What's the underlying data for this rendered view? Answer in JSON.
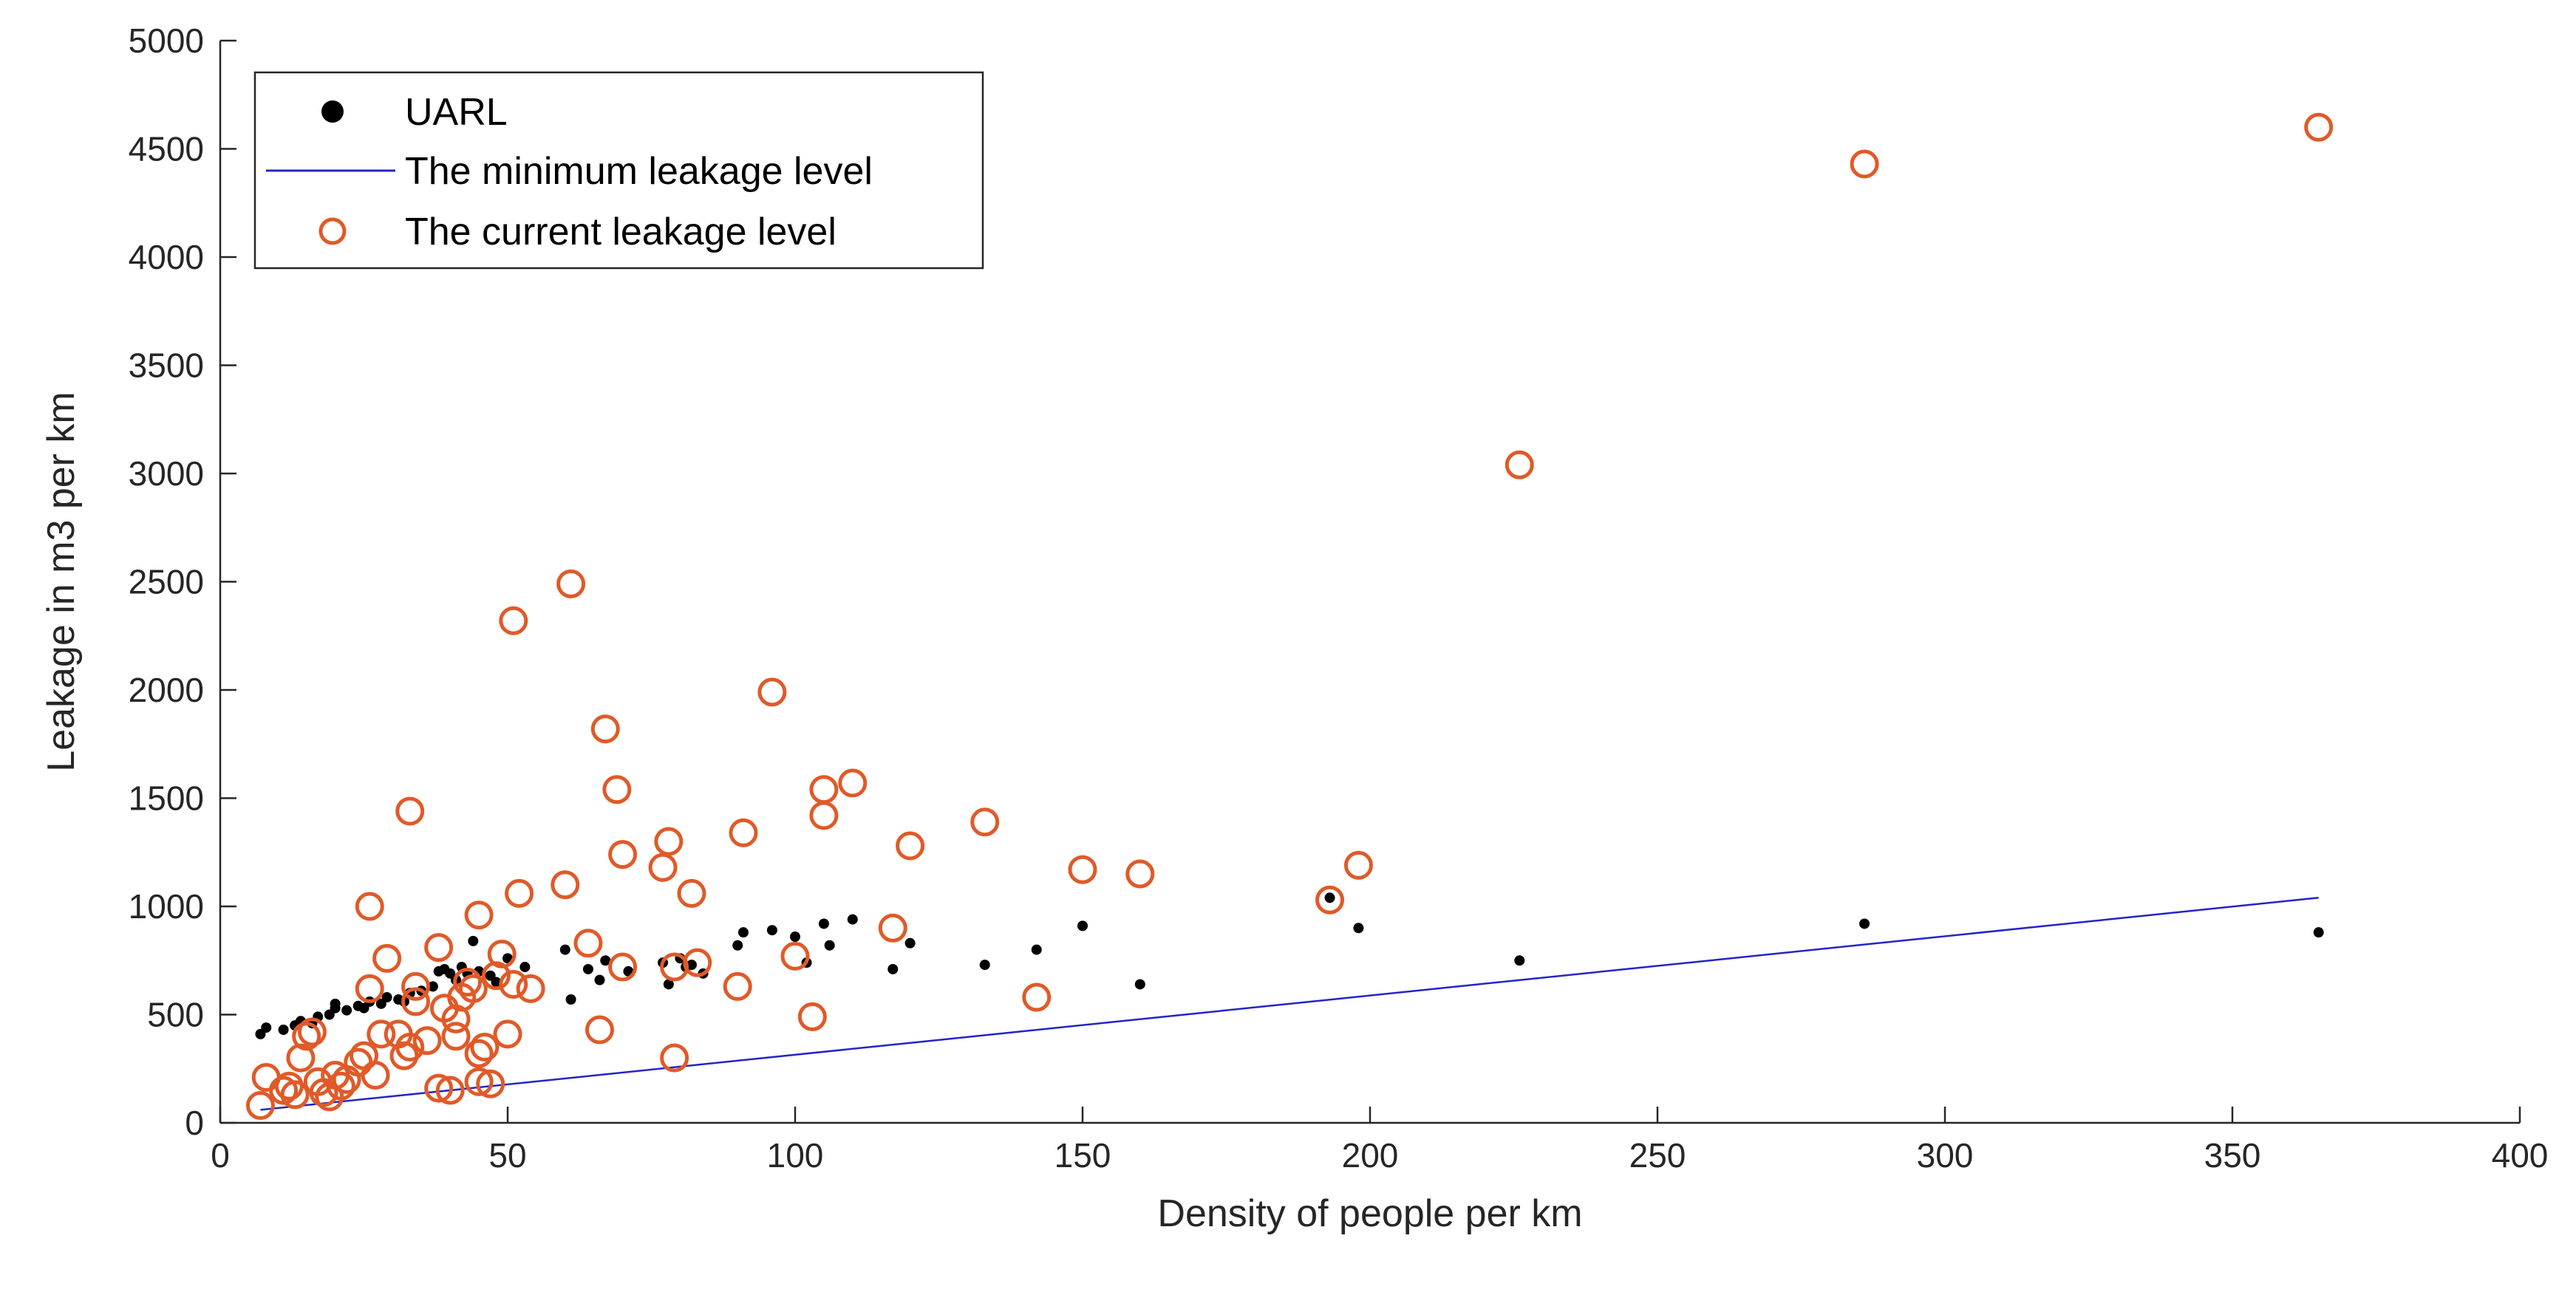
{
  "chart_data": {
    "type": "scatter",
    "xlabel": "Density of people per km",
    "ylabel": "Leakage in m3 per km",
    "xlim": [
      0,
      400
    ],
    "ylim": [
      0,
      5000
    ],
    "xticks": [
      0,
      50,
      100,
      150,
      200,
      250,
      300,
      350,
      400
    ],
    "yticks": [
      0,
      500,
      1000,
      1500,
      2000,
      2500,
      3000,
      3500,
      4000,
      4500,
      5000
    ],
    "xtick_labels": [
      "0",
      "50",
      "100",
      "150",
      "200",
      "250",
      "300",
      "350",
      "400"
    ],
    "ytick_labels": [
      "0",
      "500",
      "1000",
      "1500",
      "2000",
      "2500",
      "3000",
      "3500",
      "4000",
      "4500",
      "5000"
    ],
    "grid": false,
    "legend_position": "top-left",
    "colors": {
      "uarl": "#000000",
      "minimum": "#2424c8",
      "current": "#e05a28",
      "axis": "#262626"
    },
    "series": [
      {
        "name": "UARL",
        "marker": "filled-dot",
        "points": [
          [
            7,
            410
          ],
          [
            8,
            440
          ],
          [
            11,
            430
          ],
          [
            13,
            450
          ],
          [
            14,
            470
          ],
          [
            16,
            460
          ],
          [
            17,
            490
          ],
          [
            19,
            500
          ],
          [
            20,
            530
          ],
          [
            20,
            550
          ],
          [
            22,
            520
          ],
          [
            24,
            540
          ],
          [
            25,
            530
          ],
          [
            26,
            560
          ],
          [
            28,
            550
          ],
          [
            29,
            580
          ],
          [
            31,
            570
          ],
          [
            32,
            560
          ],
          [
            33,
            600
          ],
          [
            35,
            610
          ],
          [
            37,
            630
          ],
          [
            38,
            700
          ],
          [
            39,
            710
          ],
          [
            40,
            690
          ],
          [
            41,
            660
          ],
          [
            42,
            720
          ],
          [
            43,
            690
          ],
          [
            44,
            840
          ],
          [
            45,
            700
          ],
          [
            47,
            680
          ],
          [
            48,
            650
          ],
          [
            50,
            760
          ],
          [
            53,
            720
          ],
          [
            60,
            800
          ],
          [
            61,
            570
          ],
          [
            64,
            710
          ],
          [
            66,
            660
          ],
          [
            67,
            750
          ],
          [
            71,
            700
          ],
          [
            77,
            740
          ],
          [
            78,
            640
          ],
          [
            80,
            760
          ],
          [
            81,
            720
          ],
          [
            82,
            730
          ],
          [
            84,
            690
          ],
          [
            90,
            820
          ],
          [
            91,
            880
          ],
          [
            96,
            890
          ],
          [
            100,
            860
          ],
          [
            102,
            740
          ],
          [
            105,
            920
          ],
          [
            106,
            820
          ],
          [
            110,
            940
          ],
          [
            117,
            710
          ],
          [
            120,
            830
          ],
          [
            133,
            730
          ],
          [
            142,
            800
          ],
          [
            150,
            910
          ],
          [
            160,
            640
          ],
          [
            193,
            1040
          ],
          [
            198,
            900
          ],
          [
            226,
            750
          ],
          [
            286,
            920
          ],
          [
            365,
            880
          ]
        ]
      },
      {
        "name": "The minimum leakage level",
        "marker": "line",
        "points": [
          [
            7,
            60
          ],
          [
            365,
            1040
          ]
        ]
      },
      {
        "name": "The current leakage level",
        "marker": "open-circle",
        "points": [
          [
            7,
            80
          ],
          [
            8,
            210
          ],
          [
            11,
            150
          ],
          [
            12,
            170
          ],
          [
            13,
            130
          ],
          [
            14,
            300
          ],
          [
            15,
            400
          ],
          [
            16,
            420
          ],
          [
            17,
            190
          ],
          [
            18,
            140
          ],
          [
            19,
            120
          ],
          [
            20,
            220
          ],
          [
            21,
            170
          ],
          [
            22,
            200
          ],
          [
            24,
            280
          ],
          [
            25,
            310
          ],
          [
            26,
            620
          ],
          [
            26,
            1000
          ],
          [
            27,
            220
          ],
          [
            28,
            410
          ],
          [
            29,
            760
          ],
          [
            31,
            410
          ],
          [
            32,
            310
          ],
          [
            33,
            350
          ],
          [
            33,
            1440
          ],
          [
            34,
            630
          ],
          [
            34,
            560
          ],
          [
            36,
            380
          ],
          [
            38,
            810
          ],
          [
            38,
            160
          ],
          [
            39,
            530
          ],
          [
            40,
            150
          ],
          [
            41,
            480
          ],
          [
            41,
            400
          ],
          [
            42,
            580
          ],
          [
            43,
            650
          ],
          [
            44,
            620
          ],
          [
            45,
            960
          ],
          [
            45,
            190
          ],
          [
            45,
            320
          ],
          [
            46,
            350
          ],
          [
            47,
            180
          ],
          [
            48,
            680
          ],
          [
            49,
            780
          ],
          [
            50,
            410
          ],
          [
            51,
            2320
          ],
          [
            51,
            640
          ],
          [
            52,
            1060
          ],
          [
            54,
            620
          ],
          [
            60,
            1100
          ],
          [
            61,
            2490
          ],
          [
            64,
            830
          ],
          [
            66,
            430
          ],
          [
            67,
            1820
          ],
          [
            69,
            1540
          ],
          [
            70,
            1240
          ],
          [
            70,
            720
          ],
          [
            77,
            1180
          ],
          [
            78,
            1300
          ],
          [
            79,
            720
          ],
          [
            79,
            300
          ],
          [
            82,
            1060
          ],
          [
            83,
            740
          ],
          [
            90,
            630
          ],
          [
            91,
            1340
          ],
          [
            96,
            1990
          ],
          [
            100,
            770
          ],
          [
            103,
            490
          ],
          [
            105,
            1540
          ],
          [
            105,
            1420
          ],
          [
            110,
            1570
          ],
          [
            117,
            900
          ],
          [
            120,
            1280
          ],
          [
            133,
            1390
          ],
          [
            142,
            580
          ],
          [
            150,
            1170
          ],
          [
            160,
            1150
          ],
          [
            193,
            1030
          ],
          [
            198,
            1190
          ],
          [
            226,
            3040
          ],
          [
            286,
            4430
          ],
          [
            365,
            4600
          ]
        ]
      }
    ]
  }
}
